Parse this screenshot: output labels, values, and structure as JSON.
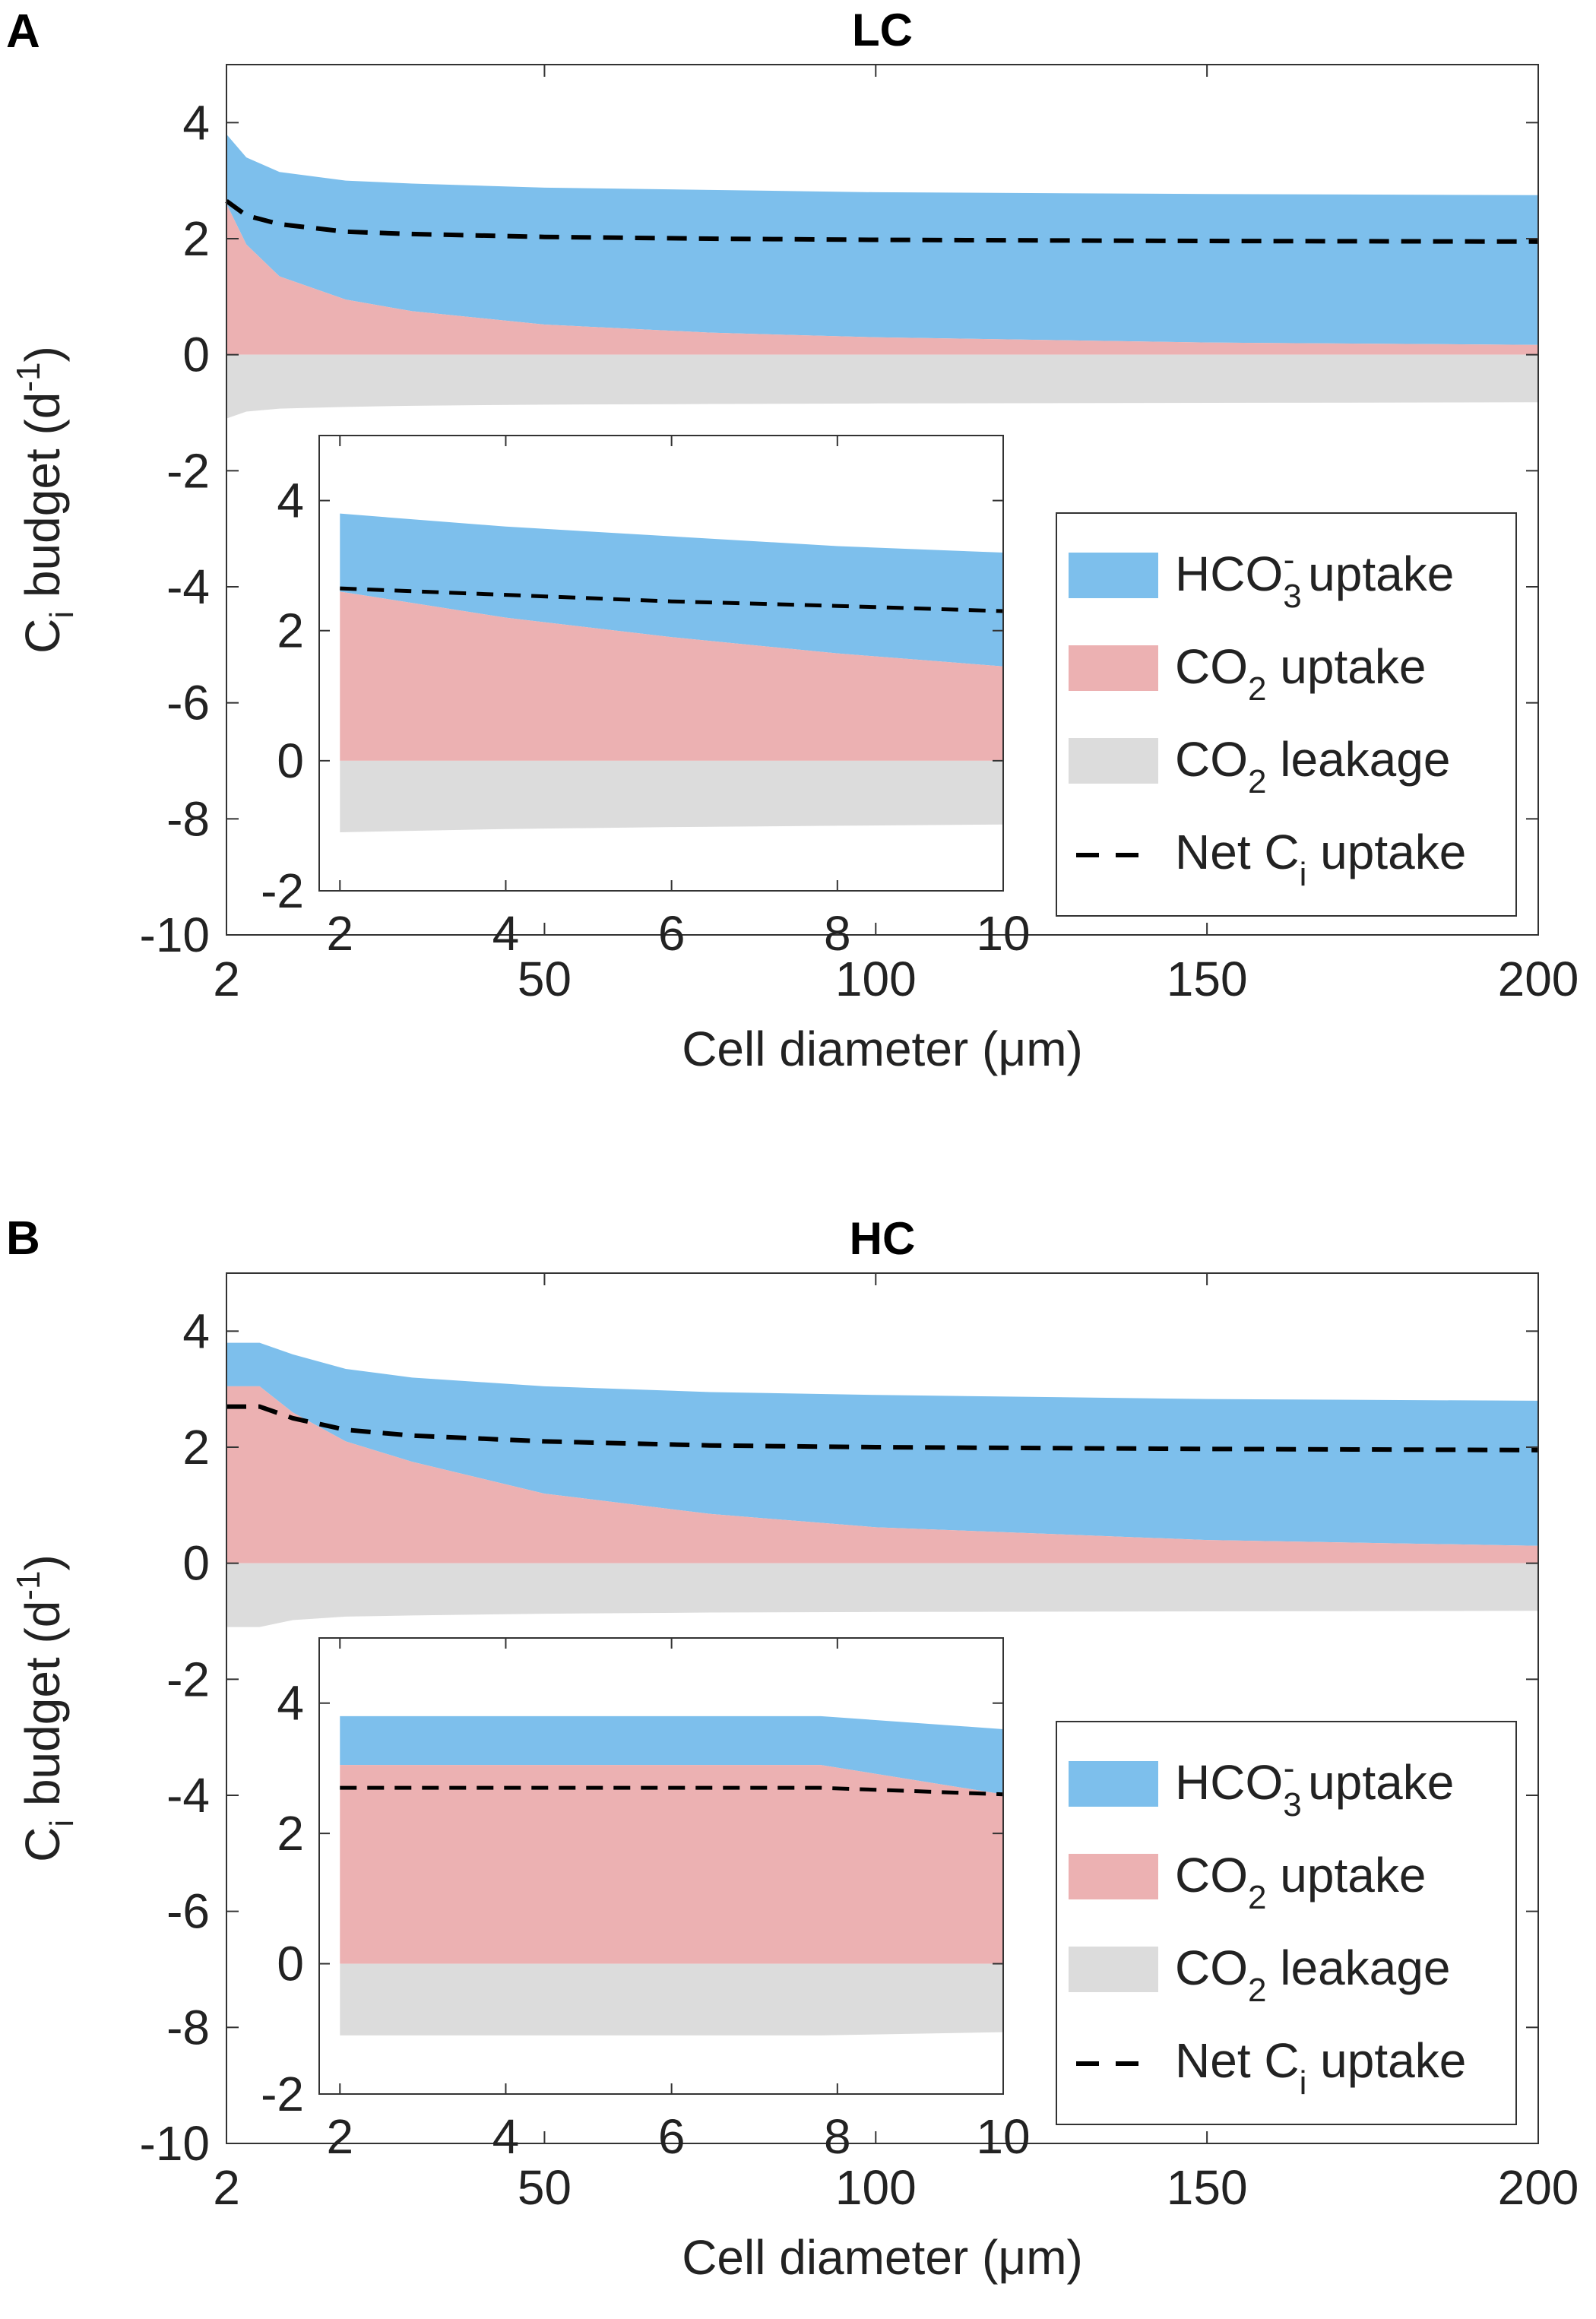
{
  "figure": {
    "panel_letters": [
      "A",
      "B"
    ],
    "xlabel": "Cell diameter (μm)",
    "ylabel_main": "C",
    "ylabel_sub": "i",
    "ylabel_rest": " budget (d",
    "ylabel_exp": "-1",
    "ylabel_close": ")"
  },
  "legend": {
    "hco3": {
      "pre": "HCO",
      "sub": "3",
      "sup": "-",
      "post": " uptake",
      "color": "#7dbfec"
    },
    "co2up": {
      "pre": "CO",
      "sub": "2",
      "post": " uptake",
      "color": "#ecb1b2"
    },
    "co2leak": {
      "pre": "CO",
      "sub": "2",
      "post": " leakage",
      "color": "#dcdcdc"
    },
    "net": {
      "pre": "Net C",
      "sub": "i",
      "post": " uptake",
      "color": "#000000"
    }
  },
  "chart_data": [
    {
      "panel": "A",
      "title": "LC",
      "type": "area",
      "x": [
        2,
        5,
        10,
        20,
        30,
        50,
        75,
        100,
        150,
        200
      ],
      "xlim": [
        0,
        200
      ],
      "ylim": [
        -10,
        5
      ],
      "xticks": [
        2,
        50,
        100,
        150,
        200
      ],
      "yticks": [
        4,
        2,
        0,
        -2,
        -4,
        -6,
        -8,
        -10
      ],
      "series": [
        {
          "name": "CO2 uptake",
          "values": [
            2.6,
            1.9,
            1.35,
            0.95,
            0.75,
            0.52,
            0.38,
            0.3,
            0.21,
            0.17
          ]
        },
        {
          "name": "HCO3- uptake top (total uptake)",
          "values": [
            3.8,
            3.4,
            3.15,
            3.0,
            2.95,
            2.88,
            2.84,
            2.8,
            2.77,
            2.75
          ]
        },
        {
          "name": "CO2 leakage",
          "values": [
            -1.1,
            -0.98,
            -0.93,
            -0.9,
            -0.88,
            -0.86,
            -0.85,
            -0.84,
            -0.83,
            -0.82
          ]
        },
        {
          "name": "Net Ci uptake",
          "values": [
            2.65,
            2.4,
            2.25,
            2.12,
            2.08,
            2.03,
            2.0,
            1.98,
            1.96,
            1.95
          ]
        }
      ],
      "inset": {
        "x": [
          2,
          4,
          6,
          8,
          10
        ],
        "xticks": [
          2,
          4,
          6,
          8,
          10
        ],
        "yticks": [
          4,
          2,
          0,
          -2
        ],
        "ylim": [
          -2,
          5
        ],
        "series": [
          {
            "name": "CO2 uptake",
            "values": [
              2.6,
              2.2,
              1.9,
              1.65,
              1.45
            ]
          },
          {
            "name": "HCO3- uptake top (total uptake)",
            "values": [
              3.8,
              3.6,
              3.45,
              3.3,
              3.2
            ]
          },
          {
            "name": "CO2 leakage",
            "values": [
              -1.1,
              -1.05,
              -1.02,
              -1.0,
              -0.98
            ]
          },
          {
            "name": "Net Ci uptake",
            "values": [
              2.65,
              2.55,
              2.45,
              2.38,
              2.3
            ]
          }
        ]
      }
    },
    {
      "panel": "B",
      "title": "HC",
      "type": "area",
      "x": [
        2,
        7,
        12,
        20,
        30,
        50,
        75,
        100,
        150,
        200
      ],
      "xlim": [
        0,
        200
      ],
      "ylim": [
        -10,
        5
      ],
      "xticks": [
        2,
        50,
        100,
        150,
        200
      ],
      "yticks": [
        4,
        2,
        0,
        -2,
        -4,
        -6,
        -8,
        -10
      ],
      "series": [
        {
          "name": "CO2 uptake",
          "values": [
            3.05,
            3.05,
            2.6,
            2.1,
            1.75,
            1.2,
            0.85,
            0.62,
            0.4,
            0.3
          ]
        },
        {
          "name": "HCO3- uptake top (total uptake)",
          "values": [
            3.8,
            3.8,
            3.6,
            3.35,
            3.2,
            3.05,
            2.95,
            2.9,
            2.83,
            2.8
          ]
        },
        {
          "name": "CO2 leakage",
          "values": [
            -1.1,
            -1.1,
            -0.98,
            -0.92,
            -0.9,
            -0.87,
            -0.85,
            -0.84,
            -0.83,
            -0.82
          ]
        },
        {
          "name": "Net Ci uptake",
          "values": [
            2.7,
            2.7,
            2.5,
            2.3,
            2.2,
            2.1,
            2.03,
            2.0,
            1.97,
            1.95
          ]
        }
      ],
      "inset": {
        "x": [
          2,
          4,
          6,
          7.8,
          10
        ],
        "xticks": [
          2,
          4,
          6,
          8,
          10
        ],
        "yticks": [
          4,
          2,
          0,
          -2
        ],
        "ylim": [
          -2,
          5
        ],
        "series": [
          {
            "name": "CO2 uptake",
            "values": [
              3.05,
              3.05,
              3.05,
              3.05,
              2.6
            ]
          },
          {
            "name": "HCO3- uptake top (total uptake)",
            "values": [
              3.8,
              3.8,
              3.8,
              3.8,
              3.6
            ]
          },
          {
            "name": "CO2 leakage",
            "values": [
              -1.1,
              -1.1,
              -1.1,
              -1.1,
              -1.05
            ]
          },
          {
            "name": "Net Ci uptake",
            "values": [
              2.7,
              2.7,
              2.7,
              2.7,
              2.6
            ]
          }
        ]
      }
    }
  ]
}
